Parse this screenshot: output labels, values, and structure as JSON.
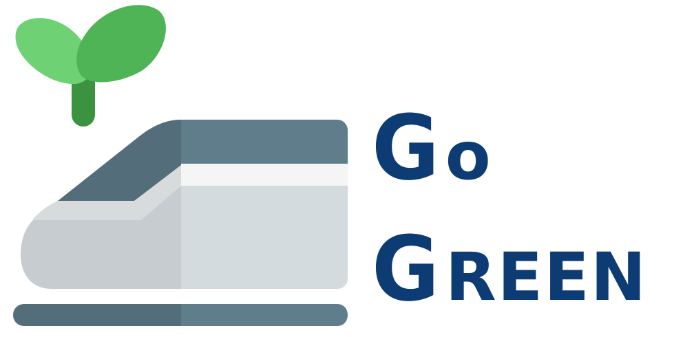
{
  "brand": {
    "line1_initial": "G",
    "line1_rest": "o",
    "line2_initial": "G",
    "line2_rest": "REEN"
  },
  "icons": {
    "sprout": "sprout-icon",
    "train": "bullet-train-icon"
  },
  "colors": {
    "text": "#0d3b73",
    "leaf_light": "#6ed174",
    "leaf_dark": "#4fb455",
    "stem": "#3b933f",
    "train_dark": "#546d7a",
    "train_roof": "#607d8b",
    "train_body": "#d4dbdf",
    "train_shadow": "#c6ccd0",
    "train_stripe": "#f5f5f5",
    "rail_dark": "#546d7a",
    "rail_light": "#607d8b"
  }
}
